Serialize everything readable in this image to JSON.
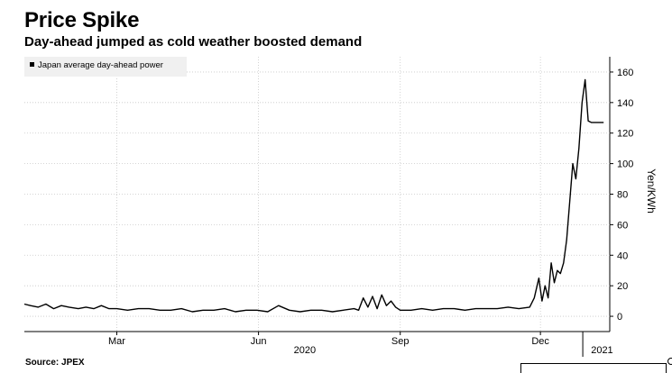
{
  "title": "Price Spike",
  "subtitle": "Day-ahead jumped as cold weather boosted demand",
  "source": "Source: JPEX",
  "chart_data": {
    "type": "line",
    "title": "Price Spike",
    "subtitle": "Day-ahead jumped as cold weather boosted demand",
    "ylabel": "Yen/KWh",
    "ylim": [
      -10,
      170
    ],
    "yticks": [
      0,
      20,
      40,
      60,
      80,
      100,
      120,
      140,
      160
    ],
    "xlim": [
      "2020-01-01",
      "2021-01-15"
    ],
    "month_ticks": [
      {
        "label": "Mar",
        "date": "2020-03-01"
      },
      {
        "label": "Jun",
        "date": "2020-06-01"
      },
      {
        "label": "Sep",
        "date": "2020-09-01"
      },
      {
        "label": "Dec",
        "date": "2020-12-01"
      }
    ],
    "year_labels": [
      {
        "label": "2020",
        "date": "2020-07-01"
      },
      {
        "label": "2021",
        "date": "2021-01-10"
      }
    ],
    "legend": {
      "position": "top-left"
    },
    "grid": true,
    "series": [
      {
        "name": "Japan average day-ahead power",
        "color": "#000000",
        "x": [
          "2020-01-01",
          "2020-01-05",
          "2020-01-10",
          "2020-01-15",
          "2020-01-20",
          "2020-01-25",
          "2020-01-30",
          "2020-02-05",
          "2020-02-10",
          "2020-02-15",
          "2020-02-20",
          "2020-02-25",
          "2020-03-01",
          "2020-03-08",
          "2020-03-15",
          "2020-03-22",
          "2020-03-29",
          "2020-04-05",
          "2020-04-12",
          "2020-04-19",
          "2020-04-26",
          "2020-05-03",
          "2020-05-10",
          "2020-05-17",
          "2020-05-24",
          "2020-05-31",
          "2020-06-07",
          "2020-06-14",
          "2020-06-21",
          "2020-06-28",
          "2020-07-05",
          "2020-07-12",
          "2020-07-19",
          "2020-07-26",
          "2020-08-02",
          "2020-08-05",
          "2020-08-08",
          "2020-08-11",
          "2020-08-14",
          "2020-08-17",
          "2020-08-20",
          "2020-08-23",
          "2020-08-26",
          "2020-08-29",
          "2020-09-01",
          "2020-09-08",
          "2020-09-15",
          "2020-09-22",
          "2020-09-29",
          "2020-10-06",
          "2020-10-13",
          "2020-10-20",
          "2020-10-27",
          "2020-11-03",
          "2020-11-10",
          "2020-11-17",
          "2020-11-24",
          "2020-11-27",
          "2020-11-30",
          "2020-12-02",
          "2020-12-04",
          "2020-12-06",
          "2020-12-08",
          "2020-12-10",
          "2020-12-12",
          "2020-12-14",
          "2020-12-16",
          "2020-12-18",
          "2020-12-20",
          "2020-12-22",
          "2020-12-24",
          "2020-12-26",
          "2020-12-28",
          "2020-12-30",
          "2021-01-01",
          "2021-01-03",
          "2021-01-05",
          "2021-01-07",
          "2021-01-09",
          "2021-01-11"
        ],
        "values": [
          8,
          7,
          6,
          8,
          5,
          7,
          6,
          5,
          6,
          5,
          7,
          5,
          5,
          4,
          5,
          5,
          4,
          4,
          5,
          3,
          4,
          4,
          5,
          3,
          4,
          4,
          3,
          7,
          4,
          3,
          4,
          4,
          3,
          4,
          5,
          4,
          12,
          6,
          13,
          5,
          14,
          7,
          10,
          6,
          4,
          4,
          5,
          4,
          5,
          5,
          4,
          5,
          5,
          5,
          6,
          5,
          6,
          12,
          25,
          10,
          20,
          12,
          35,
          22,
          30,
          28,
          35,
          50,
          75,
          100,
          90,
          110,
          140,
          155,
          128,
          127,
          127,
          127,
          127,
          127
        ]
      }
    ]
  }
}
